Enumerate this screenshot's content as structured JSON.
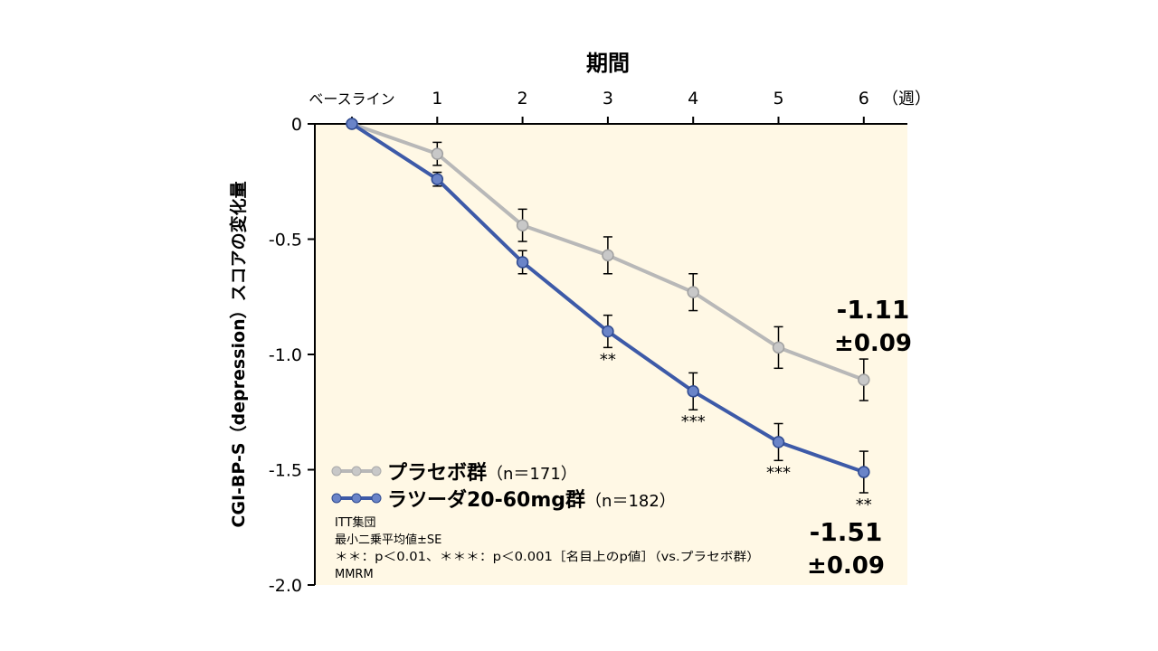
{
  "chart_data": {
    "type": "line",
    "title": "期間",
    "xlabel": "期間",
    "x_unit": "（週）",
    "ylabel": "CGI-BP-S（depression）スコアの変化量",
    "categories": [
      "ベースライン",
      "1",
      "2",
      "3",
      "4",
      "5",
      "6"
    ],
    "x": [
      0,
      1,
      2,
      3,
      4,
      5,
      6
    ],
    "ylim": [
      -2.0,
      0
    ],
    "yticks": [
      0,
      -0.5,
      -1.0,
      -1.5,
      -2.0
    ],
    "ytick_labels": [
      "0",
      "-0.5",
      "-1.0",
      "-1.5",
      "-2.0"
    ],
    "series": [
      {
        "name": "プラセボ群",
        "n_label": "（n＝171）",
        "color": "#b8b8b8",
        "values": [
          0,
          -0.13,
          -0.44,
          -0.57,
          -0.73,
          -0.97,
          -1.11
        ],
        "se": [
          0,
          0.05,
          0.07,
          0.08,
          0.08,
          0.09,
          0.09
        ],
        "annotations": [
          "",
          "",
          "",
          "",
          "",
          "",
          ""
        ],
        "end_label": [
          "-1.11",
          "±0.09"
        ]
      },
      {
        "name": "ラツーダ20-60mg群",
        "n_label": "（n＝182）",
        "color": "#3d5aa8",
        "values": [
          0,
          -0.24,
          -0.6,
          -0.9,
          -1.16,
          -1.38,
          -1.51
        ],
        "se": [
          0,
          0.03,
          0.05,
          0.07,
          0.08,
          0.08,
          0.09
        ],
        "annotations": [
          "",
          "",
          "",
          "**",
          "***",
          "***",
          "**"
        ],
        "end_label": [
          "-1.51",
          "±0.09"
        ]
      }
    ],
    "legend_position": "bottom-left",
    "notes": [
      "ITT集団",
      "最小二乗平均値±SE",
      "＊＊：p＜0.01、＊＊＊：p＜0.001［名目上のp値］（vs.プラセボ群）",
      "MMRM"
    ],
    "plot_bg": "#fff8e5"
  }
}
